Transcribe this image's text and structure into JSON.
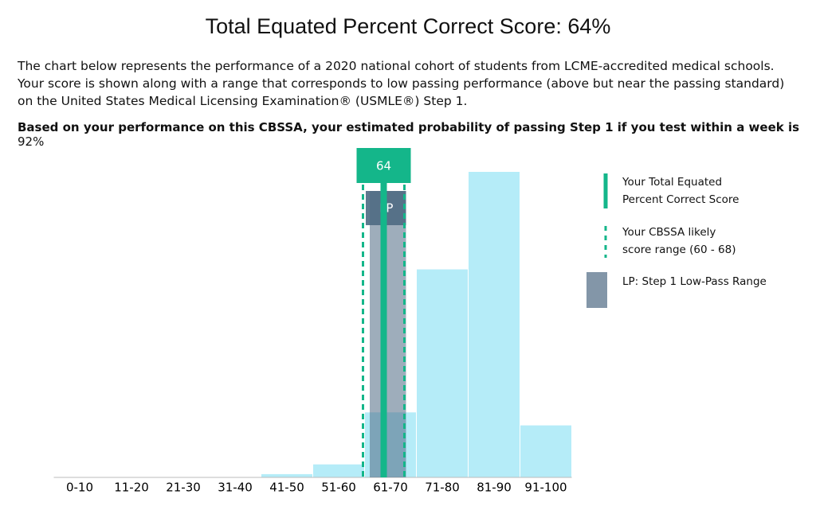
{
  "chart_data": {
    "type": "bar",
    "title": "Total Equated Percent Correct Score: 64%",
    "description": "The chart below represents the performance of a 2020 national cohort of students from LCME-accredited medical schools. Your score is shown along with a range that corresponds to low passing performance (above but near the passing standard) on the United States Medical Licensing Examination® (USMLE®) Step 1.",
    "probability_text": "Based on your performance on this CBSSA, your estimated probability of passing Step 1 if you test within a week is",
    "probability_value": "92%",
    "categories": [
      "0-10",
      "11-20",
      "21-30",
      "31-40",
      "41-50",
      "51-60",
      "61-70",
      "71-80",
      "81-90",
      "91-100"
    ],
    "values": [
      0,
      0,
      0,
      0,
      0.5,
      2,
      10,
      32,
      47,
      8
    ],
    "color": "#b5ecf8",
    "score": 64,
    "score_color": "#14b68a",
    "range": [
      60,
      68
    ],
    "lp_range": [
      61,
      68
    ],
    "lp_label": "LP",
    "lp_color": "#4e6a83",
    "legend": [
      "Your Total Equated Percent Correct Score",
      "Your CBSSA likely score range (60 - 68)",
      "LP: Step 1 Low-Pass Range"
    ]
  }
}
